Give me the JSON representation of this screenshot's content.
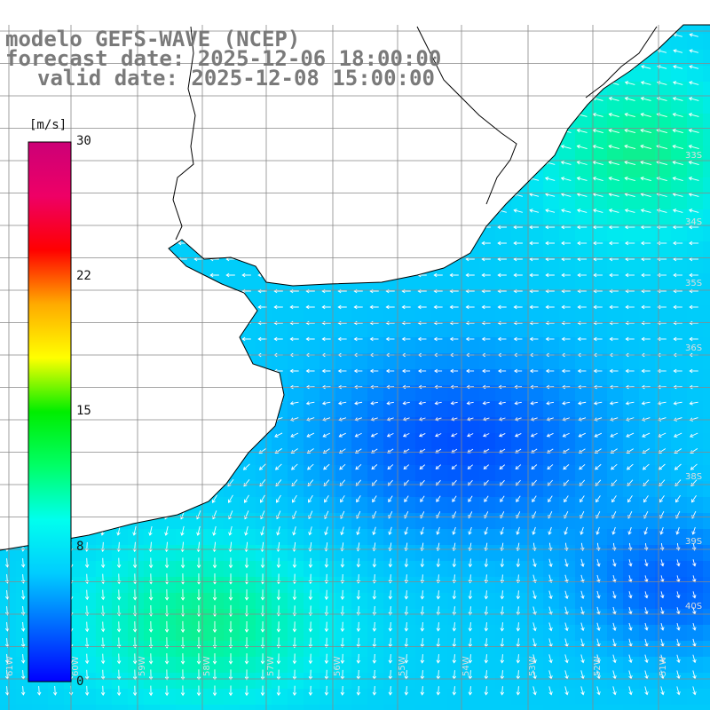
{
  "header": {
    "line1": "modelo GEFS-WAVE (NCEP)",
    "line2": "forecast date: 2025-12-06 18:00:00",
    "line3": "valid date: 2025-12-08 15:00:00"
  },
  "colorbar": {
    "unit": "[m/s]",
    "ticks": [
      "30",
      "22",
      "15",
      "8",
      "0"
    ],
    "colors": [
      "#0000ff",
      "#0066ff",
      "#00ccff",
      "#00ffee",
      "#00ff66",
      "#00ee00",
      "#ffff00",
      "#ffaa00",
      "#ff0000",
      "#ee0066",
      "#cc0077"
    ]
  },
  "map": {
    "lat_labels": [
      "33S",
      "34S",
      "35S",
      "36S",
      "38S",
      "39S",
      "40S"
    ],
    "lon_labels": [
      "61W",
      "60W",
      "59W",
      "58W",
      "57W",
      "56W",
      "55W",
      "54W",
      "53W",
      "52W",
      "51W"
    ],
    "land_color": "#ffffff",
    "grid_color": "#888888"
  }
}
